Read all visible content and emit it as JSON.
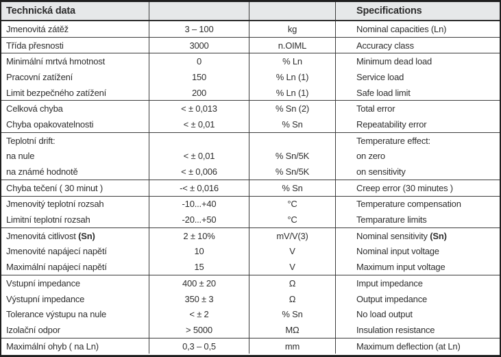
{
  "colors": {
    "header_bg": "#e6e8e9",
    "grid_line": "#3c3c3c",
    "outer_border": "#1f1f1f",
    "text": "#2d2d2d"
  },
  "table": {
    "header": {
      "czech_title": "Technická data",
      "value_col": "",
      "unit_col": "",
      "english_title": "Specifications"
    },
    "rows": [
      {
        "cz": "Jmenovitá zátěž",
        "value": "3 – 100",
        "unit": "kg",
        "en": "Nominal capacities (Ln)"
      },
      {
        "cz": "Třída přesnosti",
        "value": "3000",
        "unit": "n.OIML",
        "en": "Accuracy class"
      },
      {
        "cz": "Minimální mrtvá hmotnost",
        "value": "0",
        "unit": "% Ln",
        "en": "Minimum dead load"
      },
      {
        "cz": "Pracovní zatížení",
        "value": "150",
        "unit": "% Ln (1)",
        "en": "Service load"
      },
      {
        "cz": "Limit bezpečného zatížení",
        "value": "200",
        "unit": "% Ln (1)",
        "en": "Safe load limit"
      },
      {
        "cz": "Celková chyba",
        "value": "< ± 0,013",
        "unit": "% Sn (2)",
        "en": "Total error"
      },
      {
        "cz": "Chyba opakovatelnosti",
        "value": "< ± 0,01",
        "unit": "% Sn",
        "en": "Repeatability error"
      },
      {
        "cz": "Teplotní drift:",
        "value": "",
        "unit": "",
        "en": "Temperature effect:"
      },
      {
        "cz": "na nule",
        "value": "< ± 0,01",
        "unit": "% Sn/5K",
        "en": "on zero"
      },
      {
        "cz": "na známé hodnotě",
        "value": "< ± 0,006",
        "unit": "% Sn/5K",
        "en": "on sensitivity"
      },
      {
        "cz": "Chyba tečení ( 30 minut )",
        "value": "-< ± 0,016",
        "unit": "% Sn",
        "en": "Creep error (30 minutes )"
      },
      {
        "cz": "Jmenovitý teplotní rozsah",
        "value": "-10...+40",
        "unit": "°C",
        "en": "Temperature compensation"
      },
      {
        "cz": "Limitní teplotní rozsah",
        "value": "-20...+50",
        "unit": "°C",
        "en": "Temparature limits"
      },
      {
        "cz": "Jmenovitá citlivost",
        "cz_bold": "(Sn)",
        "value": "2 ± 10%",
        "unit": "mV/V(3)",
        "en": "Nominal sensitivity",
        "en_bold": "(Sn)"
      },
      {
        "cz": "Jmenovité napájecí napětí",
        "value": "10",
        "unit": "V",
        "en": "Nominal input voltage"
      },
      {
        "cz": "Maximální napájecí napětí",
        "value": "15",
        "unit": "V",
        "en": "Maximum input voltage"
      },
      {
        "cz": "Vstupní impedance",
        "value": "400 ± 20",
        "unit": "Ω",
        "en": "Imput impedance"
      },
      {
        "cz": "Výstupní impedance",
        "value": "350 ± 3",
        "unit": "Ω",
        "en": "Output impedance"
      },
      {
        "cz": "Tolerance výstupu na nule",
        "value": "< ± 2",
        "unit": "% Sn",
        "en": "No load output"
      },
      {
        "cz": "Izolační odpor",
        "value": "> 5000",
        "unit": "MΩ",
        "en": "Insulation resistance"
      },
      {
        "cz": "Maximální ohyb ( na Ln)",
        "value": "0,3 – 0,5",
        "unit": "mm",
        "en": "Maximum deflection (at Ln)"
      }
    ]
  }
}
